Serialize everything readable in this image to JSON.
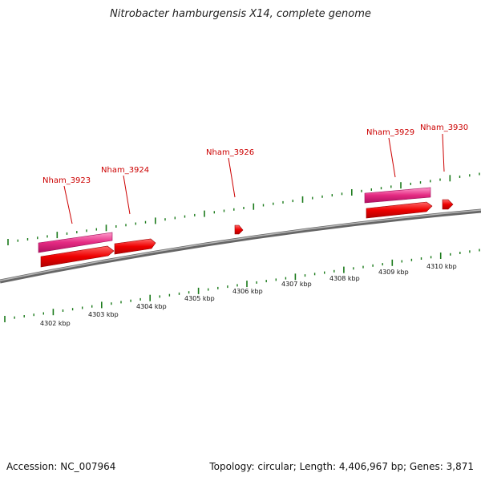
{
  "title": "Nitrobacter hamburgensis X14, complete genome",
  "footer": {
    "accession": "Accession: NC_007964",
    "summary": "Topology: circular; Length: 4,406,967 bp; Genes: 3,871"
  },
  "kbp_labels": [
    "4302 kbp",
    "4303 kbp",
    "4304 kbp",
    "4305 kbp",
    "4306 kbp",
    "4307 kbp",
    "4308 kbp",
    "4309 kbp",
    "4310 kbp"
  ],
  "gene_labels": [
    "Nham_3923",
    "Nham_3924",
    "Nham_3926",
    "Nham_3929",
    "Nham_3930"
  ],
  "colors": {
    "backbone": "#7a7a7a",
    "gene": "#ee0000",
    "gene_light": "#ff5555",
    "rna": "#e0207a",
    "rna_light": "#ff88c0",
    "tick": "#1a7a1a",
    "label": "#cc0000"
  }
}
